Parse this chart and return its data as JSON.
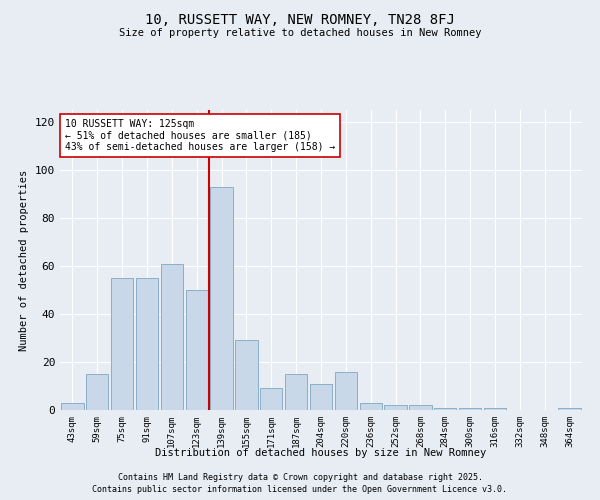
{
  "title1": "10, RUSSETT WAY, NEW ROMNEY, TN28 8FJ",
  "title2": "Size of property relative to detached houses in New Romney",
  "xlabel": "Distribution of detached houses by size in New Romney",
  "ylabel": "Number of detached properties",
  "bins": [
    "43sqm",
    "59sqm",
    "75sqm",
    "91sqm",
    "107sqm",
    "123sqm",
    "139sqm",
    "155sqm",
    "171sqm",
    "187sqm",
    "204sqm",
    "220sqm",
    "236sqm",
    "252sqm",
    "268sqm",
    "284sqm",
    "300sqm",
    "316sqm",
    "332sqm",
    "348sqm",
    "364sqm"
  ],
  "bar_values": [
    3,
    15,
    55,
    55,
    61,
    50,
    93,
    29,
    9,
    15,
    11,
    16,
    3,
    2,
    2,
    1,
    1,
    1,
    0,
    0,
    1
  ],
  "bar_color": "#c8d8e8",
  "bar_edge_color": "#8aafc8",
  "vline_x_index": 6,
  "vline_color": "#cc0000",
  "annotation_text": "10 RUSSETT WAY: 125sqm\n← 51% of detached houses are smaller (185)\n43% of semi-detached houses are larger (158) →",
  "annotation_box_color": "white",
  "annotation_box_edge": "#cc0000",
  "ylim_max": 125,
  "yticks": [
    0,
    20,
    40,
    60,
    80,
    100,
    120
  ],
  "background_color": "#e8edf4",
  "grid_color": "white",
  "footer1": "Contains HM Land Registry data © Crown copyright and database right 2025.",
  "footer2": "Contains public sector information licensed under the Open Government Licence v3.0."
}
